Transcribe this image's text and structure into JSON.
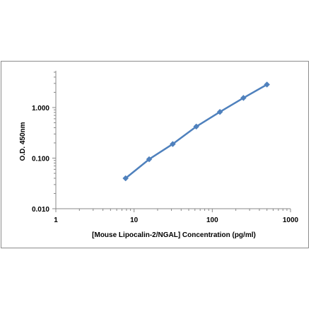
{
  "chart_data": {
    "type": "line",
    "title": "",
    "xlabel": "[Mouse Lipocalin-2/NGAL] Concentration (pg/ml)",
    "ylabel": "O.D. 450nm",
    "x_scale": "log",
    "y_scale": "log",
    "xlim": [
      1,
      1000
    ],
    "ylim": [
      0.01,
      5
    ],
    "x_tick_labels": [
      "1",
      "10",
      "100",
      "1000"
    ],
    "y_tick_labels": [
      "0.010",
      "0.100",
      "1.000"
    ],
    "grid": false,
    "legend": "none",
    "series": [
      {
        "x": [
          7.8,
          15.6,
          31.25,
          62.5,
          125,
          250,
          500
        ],
        "y": [
          0.04,
          0.095,
          0.19,
          0.42,
          0.82,
          1.55,
          2.85
        ],
        "marker": "diamond",
        "color": "#4f81bd"
      }
    ]
  }
}
